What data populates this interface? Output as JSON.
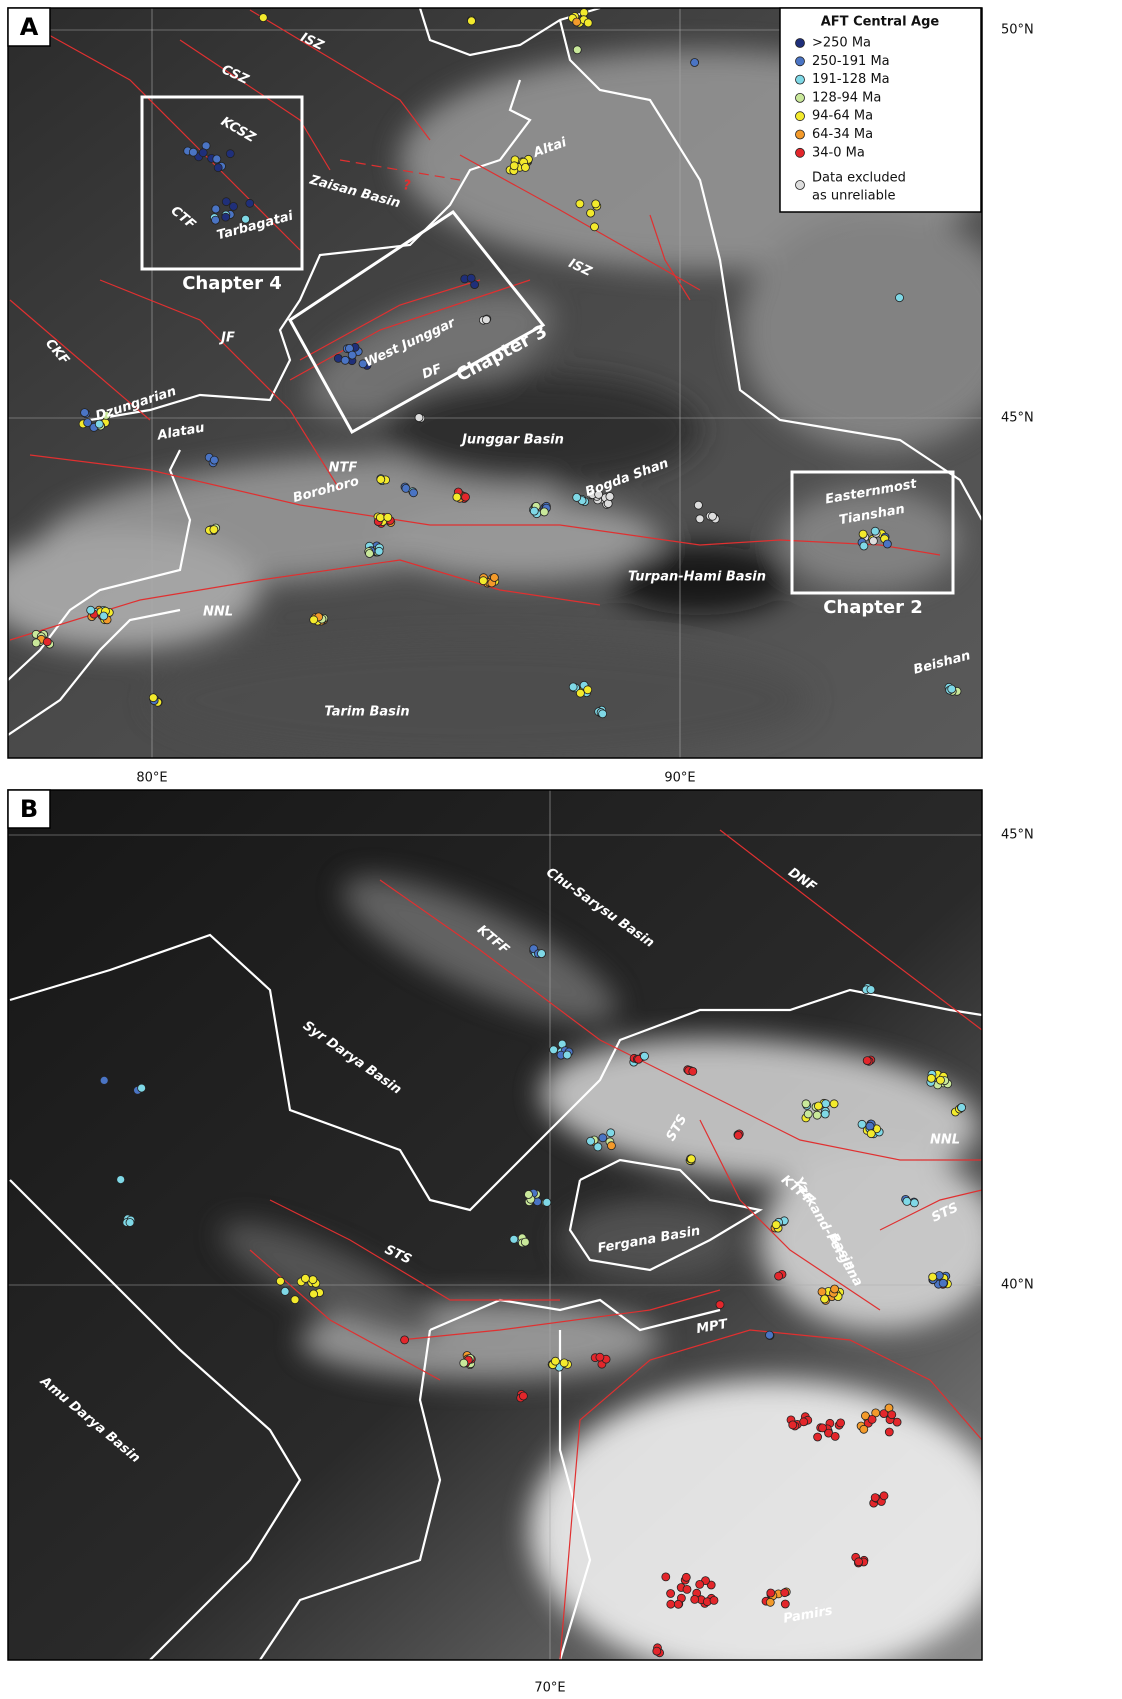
{
  "panels": [
    {
      "letter": "A",
      "lat_labels": [
        "50°N",
        "45°N"
      ],
      "lon_labels": [
        "80°E",
        "90°E"
      ],
      "labels": [
        "CSZ",
        "ISZ",
        "KCSZ",
        "Zaisan Basin",
        "?",
        "Altai",
        "CTF",
        "Tarbagatai",
        "Chapter 4",
        "ISZ",
        "JF",
        "CKF",
        "West Junggar",
        "DF",
        "Chapter 3",
        "Dzungarian",
        "Alatau",
        "Junggar Basin",
        "Bogda Shan",
        "NTF",
        "Borohoro",
        "Easternmost",
        "Tianshan",
        "Chapter 2",
        "Turpan-Hami Basin",
        "NNL",
        "Tarim Basin",
        "Beishan"
      ]
    },
    {
      "letter": "B",
      "lat_labels": [
        "45°N",
        "40°N"
      ],
      "lon_labels": [
        "70°E"
      ],
      "labels": [
        "DNF",
        "Chu-Sarysu Basin",
        "KTFF",
        "Syr Darya Basin",
        "STS",
        "NNL",
        "KTFF",
        "STS",
        "Yarkand-Fergana",
        "Basin",
        "Fergana Basin",
        "STS",
        "MPT",
        "Amu Darya Basin",
        "Pamirs"
      ]
    }
  ],
  "legend": {
    "title": "AFT Central Age",
    "items": [
      {
        "label": ">250 Ma",
        "color": "#1f2f7a"
      },
      {
        "label": "250-191 Ma",
        "color": "#4a74c4"
      },
      {
        "label": "191-128 Ma",
        "color": "#7fd8e6"
      },
      {
        "label": "128-94 Ma",
        "color": "#c9e89a"
      },
      {
        "label": "94-64 Ma",
        "color": "#f3ea2c"
      },
      {
        "label": "64-34 Ma",
        "color": "#f39a2a"
      },
      {
        "label": "34-0 Ma",
        "color": "#e3262b"
      }
    ],
    "excluded": {
      "lines": [
        "Data excluded",
        "as unreliable"
      ],
      "color": "#dddddd"
    }
  }
}
